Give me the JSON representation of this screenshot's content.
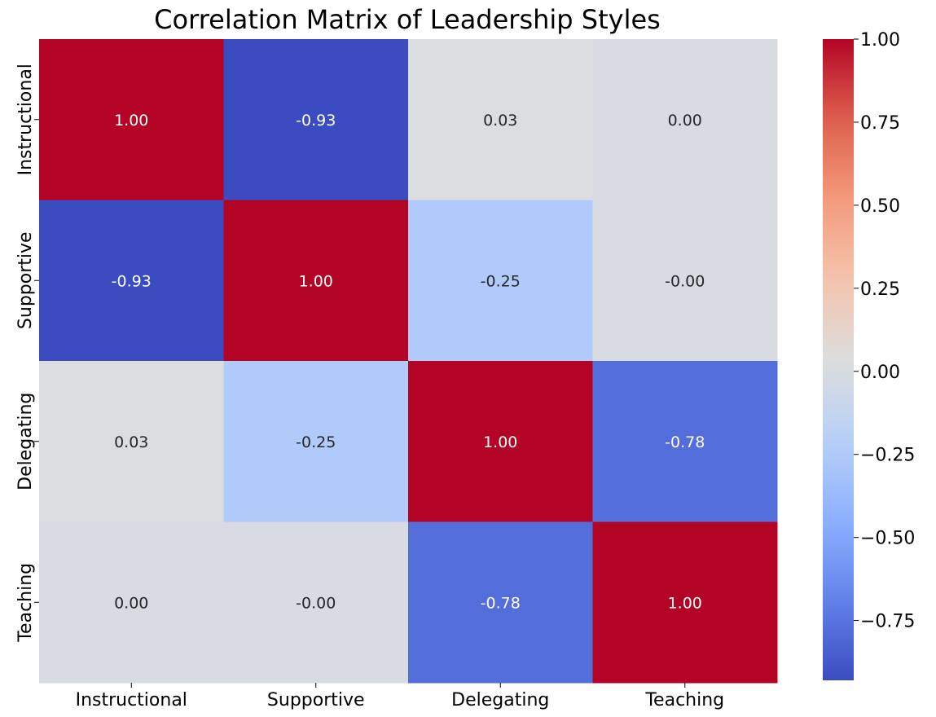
{
  "chart_data": {
    "type": "heatmap",
    "title": "Correlation Matrix of Leadership Styles",
    "xlabel": "",
    "ylabel": "",
    "x_categories": [
      "Instructional",
      "Supportive",
      "Delegating",
      "Teaching"
    ],
    "y_categories": [
      "Instructional",
      "Supportive",
      "Delegating",
      "Teaching"
    ],
    "values": [
      [
        1.0,
        -0.93,
        0.03,
        0.0
      ],
      [
        -0.93,
        1.0,
        -0.25,
        -0.0
      ],
      [
        0.03,
        -0.25,
        1.0,
        -0.78
      ],
      [
        0.0,
        -0.0,
        -0.78,
        1.0
      ]
    ],
    "annotations": [
      [
        "1.00",
        "-0.93",
        "0.03",
        "0.00"
      ],
      [
        "-0.93",
        "1.00",
        "-0.25",
        "-0.00"
      ],
      [
        "0.03",
        "-0.25",
        "1.00",
        "-0.78"
      ],
      [
        "0.00",
        "-0.00",
        "-0.78",
        "1.00"
      ]
    ],
    "colormap": "coolwarm",
    "vmin": -0.93,
    "vmax": 1.0,
    "colorbar": {
      "ticks": [
        1.0,
        0.75,
        0.5,
        0.25,
        0.0,
        -0.25,
        -0.5,
        -0.75
      ],
      "tick_labels": [
        "1.00",
        "0.75",
        "0.50",
        "0.25",
        "0.00",
        "−0.25",
        "−0.50",
        "−0.75"
      ]
    },
    "colors": {
      "text_light": "#ffffff",
      "text_dark": "#262626"
    }
  }
}
